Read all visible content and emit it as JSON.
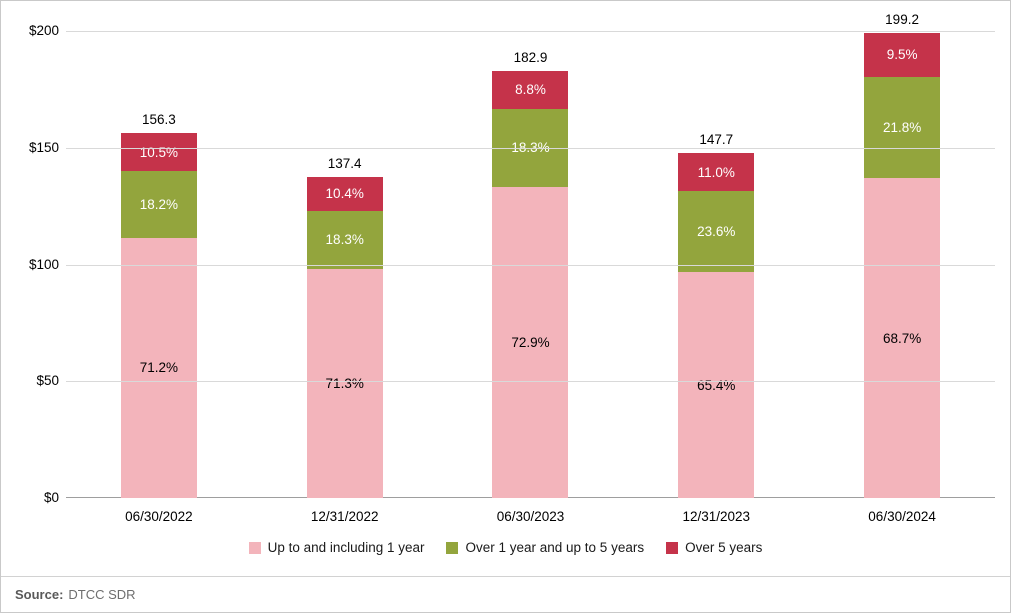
{
  "footer": {
    "source_label": "Source:",
    "source_value": "DTCC SDR"
  },
  "chart_data": {
    "type": "bar",
    "stacked": true,
    "title": "",
    "xlabel": "",
    "ylabel": "",
    "categories": [
      "06/30/2022",
      "12/31/2022",
      "06/30/2023",
      "12/31/2023",
      "06/30/2024"
    ],
    "totals": [
      156.3,
      137.4,
      182.9,
      147.7,
      199.2
    ],
    "total_labels": [
      "156.3",
      "137.4",
      "182.9",
      "147.7",
      "199.2"
    ],
    "series": [
      {
        "name": "Up to and including 1 year",
        "color": "#f3b4bb",
        "label_color": "#000000",
        "percents": [
          71.2,
          71.3,
          72.9,
          65.4,
          68.7
        ],
        "labels": [
          "71.2%",
          "71.3%",
          "72.9%",
          "65.4%",
          "68.7%"
        ]
      },
      {
        "name": "Over 1 year and up to 5 years",
        "color": "#93a53d",
        "label_color": "#ffffff",
        "percents": [
          18.2,
          18.3,
          18.3,
          23.6,
          21.8
        ],
        "labels": [
          "18.2%",
          "18.3%",
          "18.3%",
          "23.6%",
          "21.8%"
        ]
      },
      {
        "name": "Over 5 years",
        "color": "#c5334a",
        "label_color": "#ffffff",
        "percents": [
          10.5,
          10.4,
          8.8,
          11.0,
          9.5
        ],
        "labels": [
          "10.5%",
          "10.4%",
          "8.8%",
          "11.0%",
          "9.5%"
        ]
      }
    ],
    "y_ticks": [
      {
        "value": 0,
        "label": "$0"
      },
      {
        "value": 50,
        "label": "$50"
      },
      {
        "value": 100,
        "label": "$100"
      },
      {
        "value": 150,
        "label": "$150"
      },
      {
        "value": 200,
        "label": "$200"
      }
    ],
    "ylim": [
      0,
      200
    ],
    "grid": true,
    "legend_position": "bottom"
  }
}
